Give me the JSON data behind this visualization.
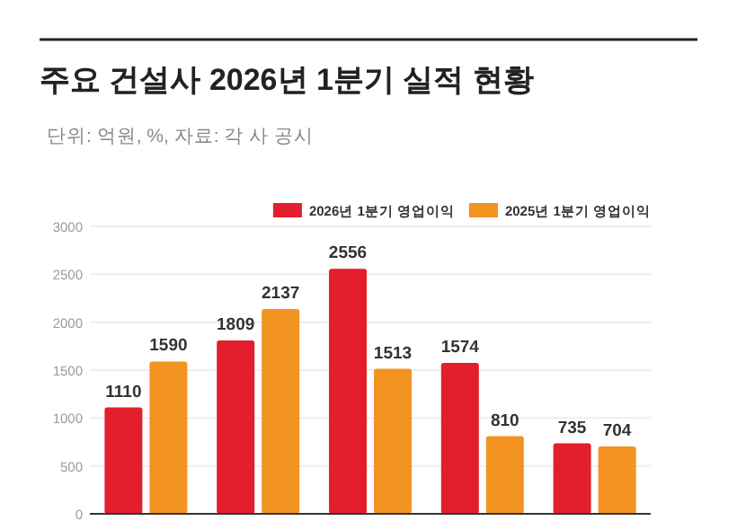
{
  "chart_data": {
    "type": "bar",
    "title": "주요 건설사 2026년 1분기 실적 현황",
    "subtitle": "단위: 억원, %, 자료: 각 사 공시",
    "categories": [
      null,
      null,
      null,
      null,
      null
    ],
    "series": [
      {
        "name": "2026년 1분기 영업이익",
        "color": "#e31e2d",
        "values": [
          1110,
          1809,
          2556,
          1574,
          735
        ]
      },
      {
        "name": "2025년 1분기 영업이익",
        "color": "#f39322",
        "values": [
          1590,
          2137,
          1513,
          810,
          704
        ]
      }
    ],
    "ylim": [
      0,
      3000
    ],
    "yticks": [
      0,
      500,
      1000,
      1500,
      2000,
      2500,
      3000
    ],
    "grid": "y",
    "legend": "top right",
    "data_labels": true
  }
}
